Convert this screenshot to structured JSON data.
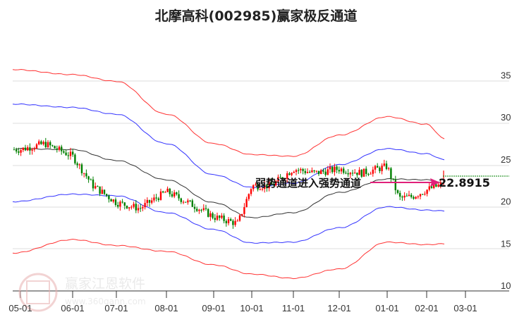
{
  "header": {
    "title": "北摩高科(002985)赢家极反通道"
  },
  "annotation": {
    "text": "弱势通道进入强势通道",
    "price_label": "22.8915"
  },
  "watermark": {
    "brand": "赢家江恩软件",
    "url": "www.360gann.com",
    "seal_chars": [
      "江",
      "赢",
      "恩",
      "家"
    ]
  },
  "colors": {
    "up_candle": "#ff0000",
    "down_candle": "#008000",
    "outer_band": "#ff3333",
    "inner_band": "#3333ff",
    "mid_line": "#333333",
    "arrow": "#e0207a",
    "price_line": "#008000",
    "grid": "#dddddd"
  },
  "chart_data": {
    "type": "candlestick",
    "title": "北摩高科(002985)赢家极反通道",
    "xlabel": "",
    "ylabel": "",
    "ylim": [
      10,
      37
    ],
    "grid": true,
    "y_ticks": [
      10,
      15,
      20,
      25,
      30,
      35
    ],
    "x_ticks": [
      "05-01",
      "06-01",
      "07-01",
      "08-01",
      "09-01",
      "10-01",
      "11-01",
      "12-01",
      "01-01",
      "02-01",
      "03-01"
    ],
    "annotations": [
      {
        "text": "弱势通道进入强势通道",
        "type": "arrow",
        "points_to": "last_price"
      },
      {
        "text": "22.8915",
        "type": "price_label",
        "value": 22.8915
      }
    ],
    "series": [
      {
        "name": "upper_outer_band (red)",
        "x": [
          "05-01",
          "06-01",
          "07-01",
          "08-01",
          "09-01",
          "10-01",
          "11-01",
          "12-01",
          "01-01",
          "02-01",
          "02-20"
        ],
        "values": [
          36.3,
          35.7,
          34.9,
          31.0,
          27.5,
          26.2,
          26.0,
          28.5,
          30.7,
          29.8,
          28.1
        ]
      },
      {
        "name": "upper_inner_band (blue)",
        "x": [
          "05-01",
          "06-01",
          "07-01",
          "08-01",
          "09-01",
          "10-01",
          "11-01",
          "12-01",
          "01-01",
          "02-01",
          "02-20"
        ],
        "values": [
          32.2,
          31.8,
          31.0,
          27.5,
          23.8,
          22.3,
          22.8,
          25.0,
          26.9,
          26.3,
          25.6
        ]
      },
      {
        "name": "middle_line (black)",
        "x": [
          "05-01",
          "06-01",
          "07-01",
          "08-01",
          "09-01",
          "10-01",
          "11-01",
          "12-01",
          "01-01",
          "02-01",
          "02-20"
        ],
        "values": [
          26.9,
          26.8,
          25.5,
          23.2,
          20.5,
          18.7,
          19.3,
          21.7,
          23.3,
          23.2,
          22.8
        ]
      },
      {
        "name": "lower_inner_band (blue)",
        "x": [
          "05-01",
          "06-01",
          "07-01",
          "08-01",
          "09-01",
          "10-01",
          "11-01",
          "12-01",
          "01-01",
          "02-01",
          "02-20"
        ],
        "values": [
          20.6,
          21.5,
          21.3,
          19.3,
          17.3,
          15.7,
          15.8,
          17.5,
          20.0,
          19.6,
          19.5
        ]
      },
      {
        "name": "lower_outer_band (red)",
        "x": [
          "05-01",
          "06-01",
          "07-01",
          "08-01",
          "09-01",
          "10-01",
          "11-01",
          "12-01",
          "01-01",
          "02-01",
          "02-20"
        ],
        "values": [
          14.5,
          16.1,
          15.4,
          14.7,
          13.1,
          12.0,
          11.5,
          12.6,
          15.8,
          15.5,
          15.6
        ]
      },
      {
        "name": "close (approx.)",
        "x": [
          "05-01",
          "05-15",
          "06-01",
          "06-15",
          "07-01",
          "07-15",
          "08-01",
          "08-15",
          "09-01",
          "09-20",
          "10-01",
          "10-15",
          "11-01",
          "11-15",
          "12-01",
          "12-15",
          "01-01",
          "01-10",
          "01-20",
          "02-01",
          "02-10",
          "02-20"
        ],
        "values": [
          26.8,
          27.5,
          26.0,
          22.5,
          20.5,
          19.8,
          21.8,
          20.5,
          18.8,
          18.0,
          22.5,
          22.5,
          24.5,
          24.0,
          24.5,
          24.0,
          24.8,
          21.0,
          21.2,
          22.0,
          22.5,
          22.9
        ]
      }
    ],
    "last_price": 22.8915
  }
}
